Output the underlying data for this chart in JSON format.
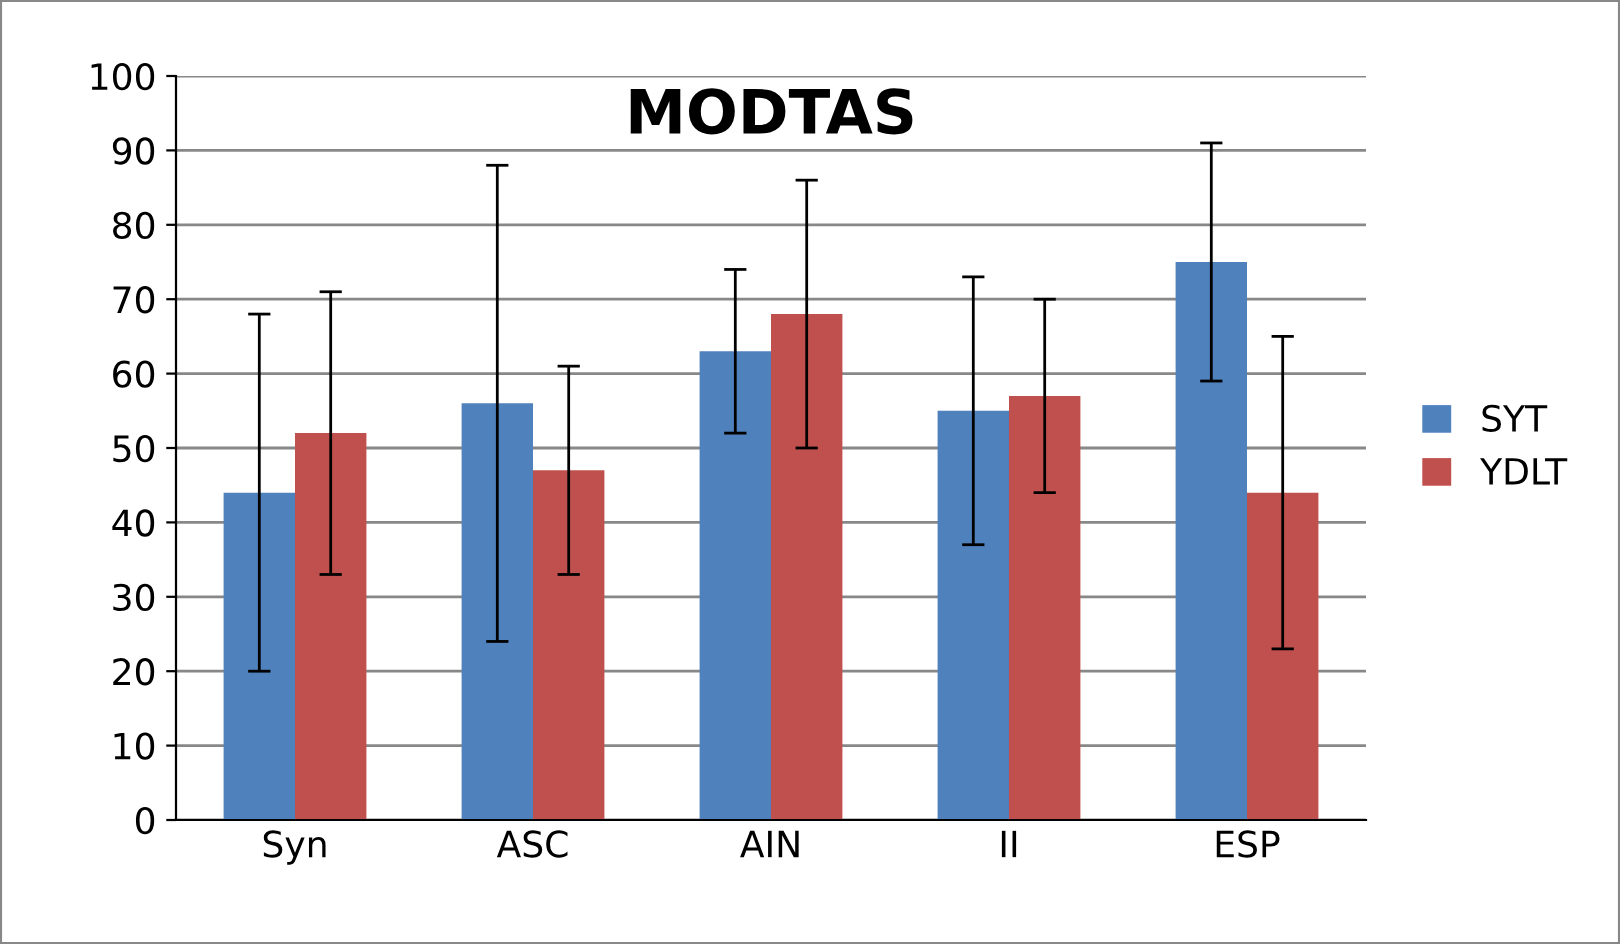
{
  "chart_data": {
    "type": "bar",
    "title": "MODTAS",
    "categories": [
      "Syn",
      "ASC",
      "AIN",
      "II",
      "ESP"
    ],
    "series": [
      {
        "name": "SYT",
        "color": "#4f81bd",
        "values": [
          44,
          56,
          63,
          55,
          75
        ],
        "errors": [
          [
            20,
            68
          ],
          [
            24,
            88
          ],
          [
            52,
            74
          ],
          [
            37,
            73
          ],
          [
            59,
            91
          ]
        ]
      },
      {
        "name": "YDLT",
        "color": "#c0504d",
        "values": [
          52,
          47,
          68,
          57,
          44
        ],
        "errors": [
          [
            33,
            71
          ],
          [
            33,
            61
          ],
          [
            50,
            86
          ],
          [
            44,
            70
          ],
          [
            23,
            65
          ]
        ]
      }
    ],
    "ylim": [
      0,
      100
    ],
    "yticks": [
      0,
      10,
      20,
      30,
      40,
      50,
      60,
      70,
      80,
      90,
      100
    ],
    "grid": "y",
    "legend": "right"
  }
}
